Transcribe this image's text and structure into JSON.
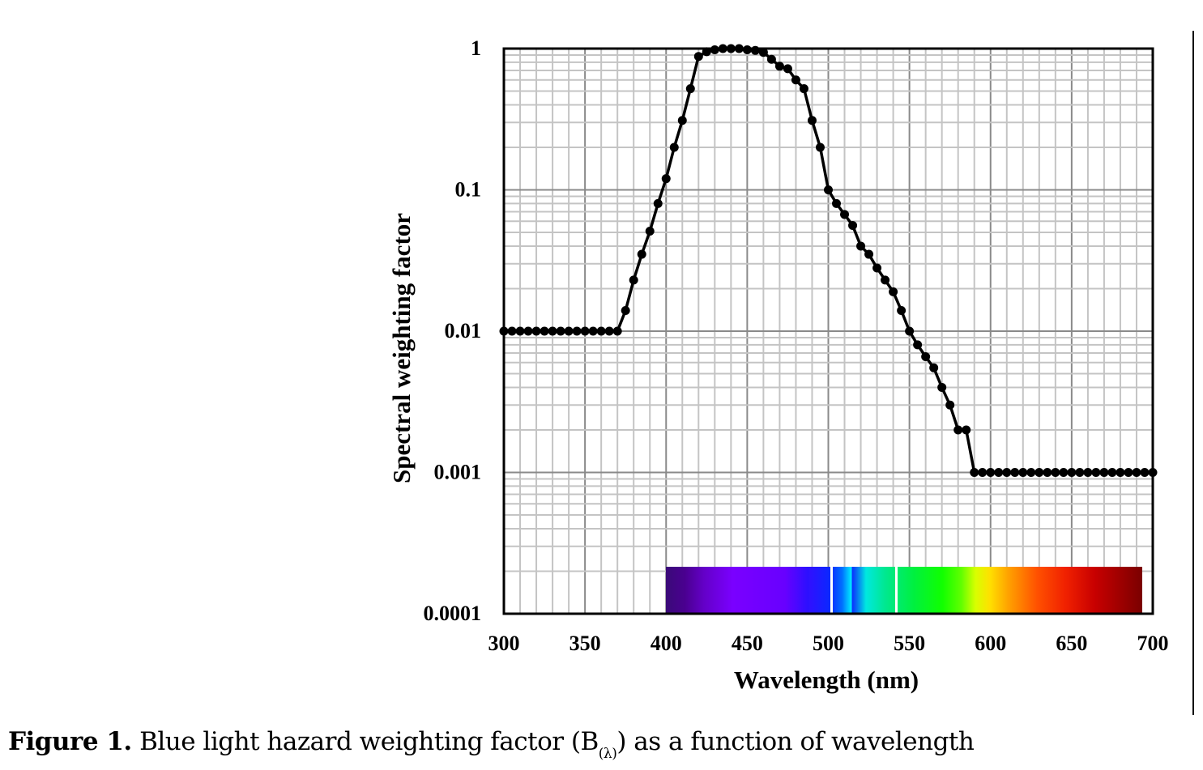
{
  "chart_data": {
    "type": "line",
    "title": "",
    "xlabel": "Wavelength (nm)",
    "ylabel": "Spectral weighting factor",
    "xlim": [
      300,
      700
    ],
    "ylim": [
      0.0001,
      1
    ],
    "yscale": "log",
    "grid": true,
    "legend": "none",
    "x_ticks": [
      "300",
      "350",
      "400",
      "450",
      "500",
      "550",
      "600",
      "650",
      "700"
    ],
    "y_ticks": [
      "1",
      "0.1",
      "0.01",
      "0.001",
      "0.0001"
    ],
    "series": [
      {
        "name": "B(λ)",
        "color": "#000000",
        "marker": "circle",
        "x": [
          300,
          305,
          310,
          315,
          320,
          325,
          330,
          335,
          340,
          345,
          350,
          355,
          360,
          365,
          370,
          375,
          380,
          385,
          390,
          395,
          400,
          405,
          410,
          415,
          420,
          425,
          430,
          435,
          440,
          445,
          450,
          455,
          460,
          465,
          470,
          475,
          480,
          485,
          490,
          495,
          500,
          505,
          510,
          515,
          520,
          525,
          530,
          535,
          540,
          545,
          550,
          555,
          560,
          565,
          570,
          575,
          580,
          585,
          590,
          595,
          600,
          605,
          610,
          615,
          620,
          625,
          630,
          635,
          640,
          645,
          650,
          655,
          660,
          665,
          670,
          675,
          680,
          685,
          690,
          695,
          700
        ],
        "values": [
          0.01,
          0.01,
          0.01,
          0.01,
          0.01,
          0.01,
          0.01,
          0.01,
          0.01,
          0.01,
          0.01,
          0.01,
          0.01,
          0.01,
          0.01,
          0.014,
          0.023,
          0.035,
          0.051,
          0.08,
          0.12,
          0.2,
          0.31,
          0.52,
          0.88,
          0.95,
          0.98,
          1.0,
          1.0,
          1.0,
          0.98,
          0.97,
          0.94,
          0.84,
          0.75,
          0.72,
          0.6,
          0.52,
          0.31,
          0.2,
          0.1,
          0.08,
          0.067,
          0.056,
          0.04,
          0.035,
          0.028,
          0.023,
          0.019,
          0.014,
          0.01,
          0.008,
          0.0066,
          0.0055,
          0.004,
          0.003,
          0.002,
          0.002,
          0.001,
          0.001,
          0.001,
          0.001,
          0.001,
          0.001,
          0.001,
          0.001,
          0.001,
          0.001,
          0.001,
          0.001,
          0.001,
          0.001,
          0.001,
          0.001,
          0.001,
          0.001,
          0.001,
          0.001,
          0.001,
          0.001,
          0.001
        ]
      }
    ],
    "annotations": [
      "visible spectrum color bar from 400 to ~695 nm"
    ]
  },
  "caption": {
    "label": "Figure 1.",
    "text_before": " Blue light hazard weighting factor (B",
    "subscript": "(λ)",
    "text_after": ") as a function of wavelength"
  }
}
